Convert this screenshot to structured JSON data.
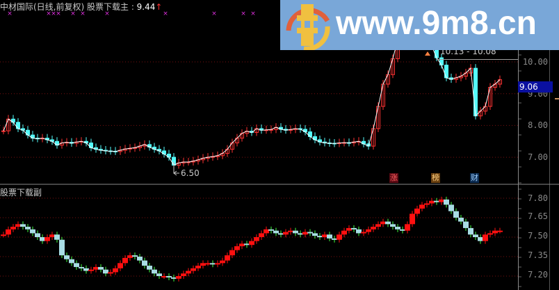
{
  "header": {
    "title": "中材国际(日线,前复权) 股票下载主",
    "separator": " : ",
    "last_price": "9.44",
    "arrow": "↑"
  },
  "sub_pane": {
    "title": "股票下载副"
  },
  "annotations": {
    "range": "10.13 - 10.08",
    "low": "6.50",
    "current_price": "9.06",
    "markers": [
      "涨",
      "榜",
      "财"
    ]
  },
  "watermark": {
    "text": "www.9m8.cn",
    "small_text": "www.9m8.cn"
  },
  "colors": {
    "up": "#ff3232",
    "down": "#54fcfc",
    "sub_up": "#ff1010",
    "sub_down": "#a8dce4",
    "line": "#ffffff",
    "grid": "#7a1010",
    "signal": "#e030e0"
  },
  "chart_data": [
    {
      "type": "candlestick",
      "pane": "main",
      "title": "中材国际(日线,前复权) 股票下载主",
      "yticks": [
        "10.00",
        "9.00",
        "8.00",
        "7.00"
      ],
      "ylim": [
        6.3,
        11.95
      ],
      "grid": true,
      "closes": [
        7.83,
        8.2,
        8.1,
        7.9,
        7.85,
        7.7,
        7.6,
        7.58,
        7.6,
        7.55,
        7.5,
        7.38,
        7.45,
        7.47,
        7.44,
        7.48,
        7.5,
        7.45,
        7.3,
        7.25,
        7.22,
        7.2,
        7.19,
        7.18,
        7.22,
        7.26,
        7.28,
        7.3,
        7.35,
        7.4,
        7.32,
        7.25,
        7.2,
        7.1,
        7.0,
        6.75,
        6.82,
        6.85,
        6.85,
        6.88,
        6.92,
        6.97,
        7.0,
        7.02,
        7.05,
        7.12,
        7.25,
        7.45,
        7.6,
        7.75,
        7.82,
        7.78,
        7.9,
        7.85,
        7.86,
        7.87,
        7.94,
        7.88,
        7.85,
        7.87,
        7.9,
        7.88,
        7.8,
        7.65,
        7.55,
        7.48,
        7.45,
        7.44,
        7.43,
        7.45,
        7.46,
        7.45,
        7.48,
        7.5,
        7.42,
        7.35,
        7.9,
        8.6,
        9.3,
        9.6,
        10.1,
        10.7,
        11.0,
        10.9,
        10.7,
        10.9,
        10.8,
        10.6,
        10.5,
        10.13,
        9.9,
        9.5,
        9.45,
        9.5,
        9.55,
        9.65,
        9.8,
        8.3,
        8.45,
        8.6,
        9.2,
        9.3,
        9.44
      ],
      "signal_markers_x_index": [
        1,
        9,
        10,
        11,
        14,
        16,
        21,
        33,
        43,
        49,
        51
      ]
    },
    {
      "type": "candlestick",
      "pane": "sub",
      "title": "股票下载副",
      "yticks": [
        "7.80",
        "7.65",
        "7.50",
        "7.35",
        "7.20"
      ],
      "ylim": [
        7.15,
        7.9
      ],
      "grid": true,
      "closes": [
        7.52,
        7.56,
        7.58,
        7.6,
        7.58,
        7.56,
        7.53,
        7.5,
        7.47,
        7.5,
        7.52,
        7.48,
        7.36,
        7.33,
        7.3,
        7.27,
        7.26,
        7.24,
        7.25,
        7.27,
        7.25,
        7.22,
        7.23,
        7.26,
        7.3,
        7.34,
        7.36,
        7.35,
        7.32,
        7.28,
        7.25,
        7.22,
        7.2,
        7.2,
        7.19,
        7.18,
        7.2,
        7.22,
        7.24,
        7.26,
        7.28,
        7.3,
        7.3,
        7.29,
        7.3,
        7.32,
        7.36,
        7.4,
        7.43,
        7.45,
        7.44,
        7.47,
        7.5,
        7.53,
        7.56,
        7.55,
        7.53,
        7.52,
        7.54,
        7.55,
        7.53,
        7.52,
        7.54,
        7.53,
        7.51,
        7.5,
        7.52,
        7.49,
        7.48,
        7.52,
        7.55,
        7.57,
        7.56,
        7.53,
        7.54,
        7.56,
        7.58,
        7.6,
        7.62,
        7.6,
        7.58,
        7.56,
        7.55,
        7.6,
        7.68,
        7.72,
        7.75,
        7.76,
        7.78,
        7.77,
        7.79,
        7.75,
        7.7,
        7.65,
        7.62,
        7.57,
        7.52,
        7.5,
        7.47,
        7.52,
        7.53,
        7.55,
        7.55
      ]
    }
  ]
}
